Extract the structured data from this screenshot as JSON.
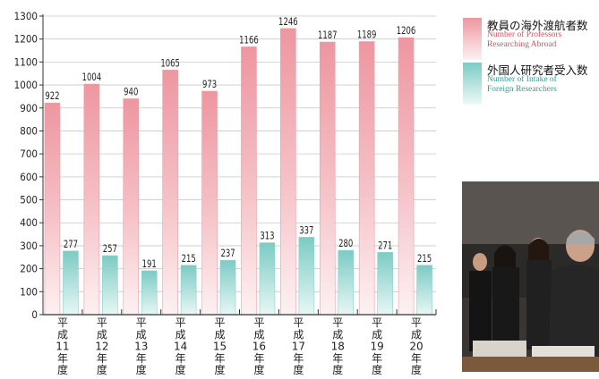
{
  "chart_data": {
    "type": "bar",
    "categories": [
      "平成11年度",
      "平成12年度",
      "平成13年度",
      "平成14年度",
      "平成15年度",
      "平成16年度",
      "平成17年度",
      "平成18年度",
      "平成19年度",
      "平成20年度"
    ],
    "category_chars": [
      [
        "平",
        "成",
        "11",
        "年",
        "度"
      ],
      [
        "平",
        "成",
        "12",
        "年",
        "度"
      ],
      [
        "平",
        "成",
        "13",
        "年",
        "度"
      ],
      [
        "平",
        "成",
        "14",
        "年",
        "度"
      ],
      [
        "平",
        "成",
        "15",
        "年",
        "度"
      ],
      [
        "平",
        "成",
        "16",
        "年",
        "度"
      ],
      [
        "平",
        "成",
        "17",
        "年",
        "度"
      ],
      [
        "平",
        "成",
        "18",
        "年",
        "度"
      ],
      [
        "平",
        "成",
        "19",
        "年",
        "度"
      ],
      [
        "平",
        "成",
        "20",
        "年",
        "度"
      ]
    ],
    "series": [
      {
        "name": "教員の海外渡航者数 Number of Professors Researching Abroad",
        "values": [
          922,
          1004,
          940,
          1065,
          973,
          1166,
          1246,
          1187,
          1189,
          1206
        ],
        "color": "#ef9aa3"
      },
      {
        "name": "外国人研究者受入数 Number of Intake of Foreign Researchers",
        "values": [
          277,
          257,
          191,
          215,
          237,
          313,
          337,
          280,
          271,
          215
        ],
        "color": "#7ecdc6"
      }
    ],
    "ylim": [
      0,
      1300
    ],
    "yticks": [
      0,
      100,
      200,
      300,
      400,
      500,
      600,
      700,
      800,
      900,
      1000,
      1100,
      1200,
      1300
    ],
    "grid": true,
    "legend_position": "right",
    "data_labels": true
  },
  "legend": {
    "item1_ja": "教員の海外渡航者数",
    "item1_en1": "Number of Professors",
    "item1_en2": "Researching Abroad",
    "item1_color": "#ef9aa3",
    "item1_text_color": "#d4505f",
    "item2_ja": "外国人研究者受入数",
    "item2_en1": "Number of Intake of",
    "item2_en2": "Foreign Researchers",
    "item2_color": "#7ecdc6",
    "item2_text_color": "#2e9e98"
  }
}
